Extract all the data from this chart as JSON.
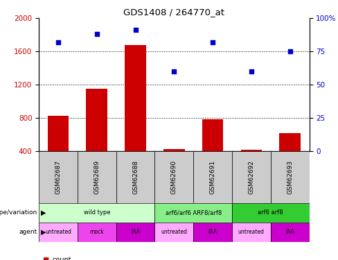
{
  "title": "GDS1408 / 264770_at",
  "samples": [
    "GSM62687",
    "GSM62689",
    "GSM62688",
    "GSM62690",
    "GSM62691",
    "GSM62692",
    "GSM62693"
  ],
  "bar_values": [
    820,
    1150,
    1680,
    420,
    780,
    415,
    610
  ],
  "scatter_values": [
    82,
    88,
    91,
    60,
    82,
    60,
    75
  ],
  "bar_color": "#cc0000",
  "scatter_color": "#0000cc",
  "ylim_left": [
    400,
    2000
  ],
  "ylim_right": [
    0,
    100
  ],
  "yticks_left": [
    400,
    800,
    1200,
    1600,
    2000
  ],
  "yticks_right": [
    0,
    25,
    50,
    75,
    100
  ],
  "ytick_labels_right": [
    "0",
    "25",
    "50",
    "75",
    "100%"
  ],
  "hlines": [
    800,
    1200,
    1600
  ],
  "genotype_groups": [
    {
      "label": "wild type",
      "start": 0,
      "end": 3,
      "color": "#ccffcc"
    },
    {
      "label": "arf6/arf6 ARF8/arf8",
      "start": 3,
      "end": 5,
      "color": "#88ee88"
    },
    {
      "label": "arf6 arf8",
      "start": 5,
      "end": 7,
      "color": "#33cc33"
    }
  ],
  "agent_labels": [
    "untreated",
    "mock",
    "IAA",
    "untreated",
    "IAA",
    "untreated",
    "IAA"
  ],
  "agent_colors": [
    "#ffaaff",
    "#ee44ee",
    "#cc00cc",
    "#ffaaff",
    "#cc00cc",
    "#ffaaff",
    "#cc00cc"
  ],
  "sample_bg": "#cccccc",
  "tick_label_color_left": "#cc0000",
  "tick_label_color_right": "#0000cc",
  "legend_count_color": "#cc0000",
  "legend_pct_color": "#0000cc",
  "fig_width": 4.88,
  "fig_height": 3.75,
  "dpi": 100
}
